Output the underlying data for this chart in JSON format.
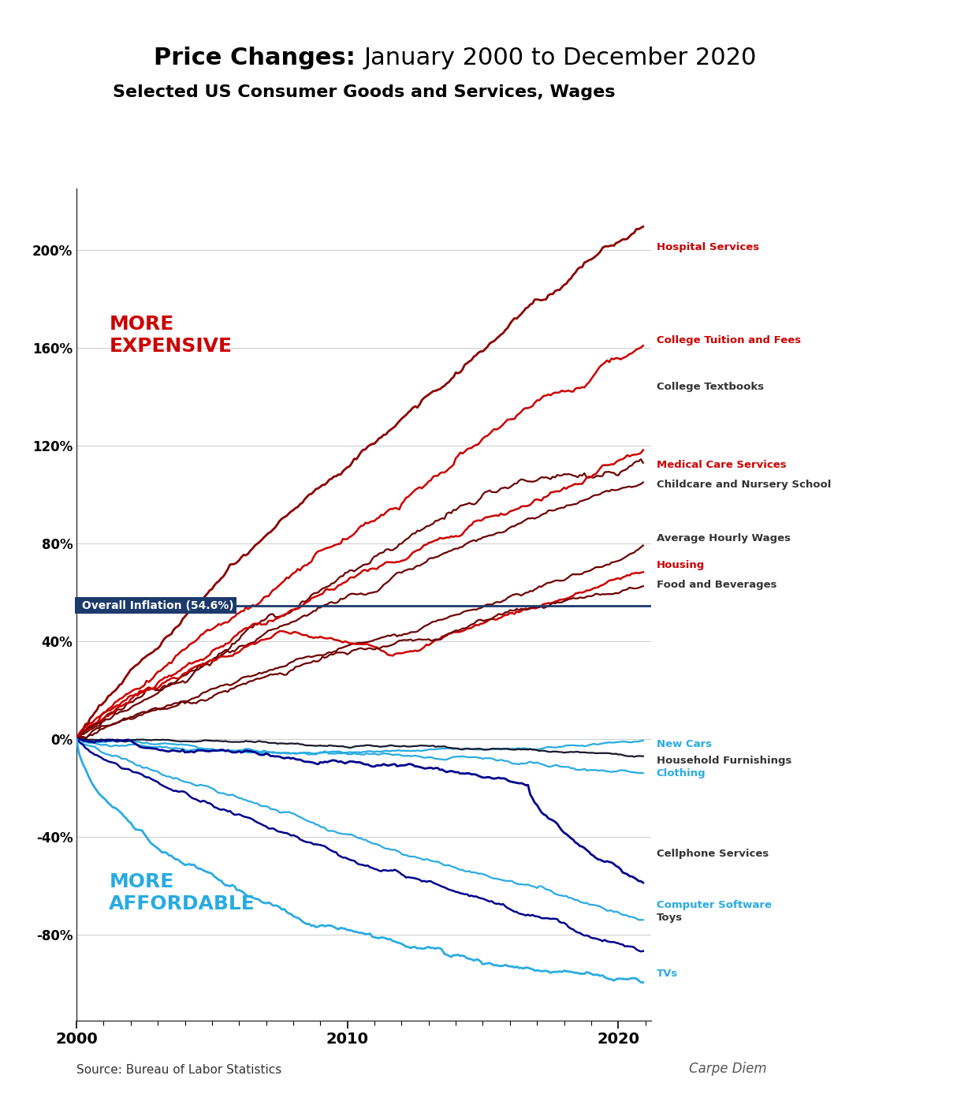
{
  "title_bold": "Price Changes: ",
  "title_rest": "January 2000 to December 2020",
  "subtitle": "Selected US Consumer Goods and Services, Wages",
  "source": "Source: Bureau of Labor Statistics",
  "inflation_label": "Overall Inflation (54.6%)",
  "inflation_value": 54.6,
  "more_expensive_label": "MORE\nEXPENSIVE",
  "more_affordable_label": "MORE\nAFFORDABLE",
  "series": {
    "Hospital Services": {
      "color": "#8B0000",
      "label_color": "#CC0000"
    },
    "College Tuition and Fees": {
      "color": "#CC0000",
      "label_color": "#CC0000"
    },
    "College Textbooks": {
      "color": "#6B0000",
      "label_color": "#333333"
    },
    "Medical Care Services": {
      "color": "#CC0000",
      "label_color": "#CC0000"
    },
    "Childcare and Nursery School": {
      "color": "#6B0000",
      "label_color": "#333333"
    },
    "Average Hourly Wages": {
      "color": "#6B0000",
      "label_color": "#333333"
    },
    "Housing": {
      "color": "#CC0000",
      "label_color": "#CC0000"
    },
    "Food and Beverages": {
      "color": "#6B0000",
      "label_color": "#333333"
    },
    "New Cars": {
      "color": "#29ABE2",
      "label_color": "#29ABE2"
    },
    "Household Furnishings": {
      "color": "#1A1A2E",
      "label_color": "#333333"
    },
    "Clothing": {
      "color": "#29ABE2",
      "label_color": "#29ABE2"
    },
    "Cellphone Services": {
      "color": "#00008B",
      "label_color": "#333333"
    },
    "Computer Software": {
      "color": "#29ABE2",
      "label_color": "#29ABE2"
    },
    "Toys": {
      "color": "#00008B",
      "label_color": "#333333"
    },
    "TVs": {
      "color": "#29ABE2",
      "label_color": "#29ABE2"
    }
  },
  "background_color": "#ffffff",
  "inflation_box_color": "#1C3A6B",
  "inflation_text_color": "#ffffff",
  "more_expensive_color": "#CC0000",
  "more_affordable_color": "#29ABE2",
  "ylim": [
    -115,
    225
  ],
  "xlim": [
    2000,
    2021.2
  ],
  "yticks": [
    -80,
    -40,
    0,
    40,
    80,
    120,
    160,
    200
  ],
  "xticks": [
    2000,
    2010,
    2020
  ]
}
